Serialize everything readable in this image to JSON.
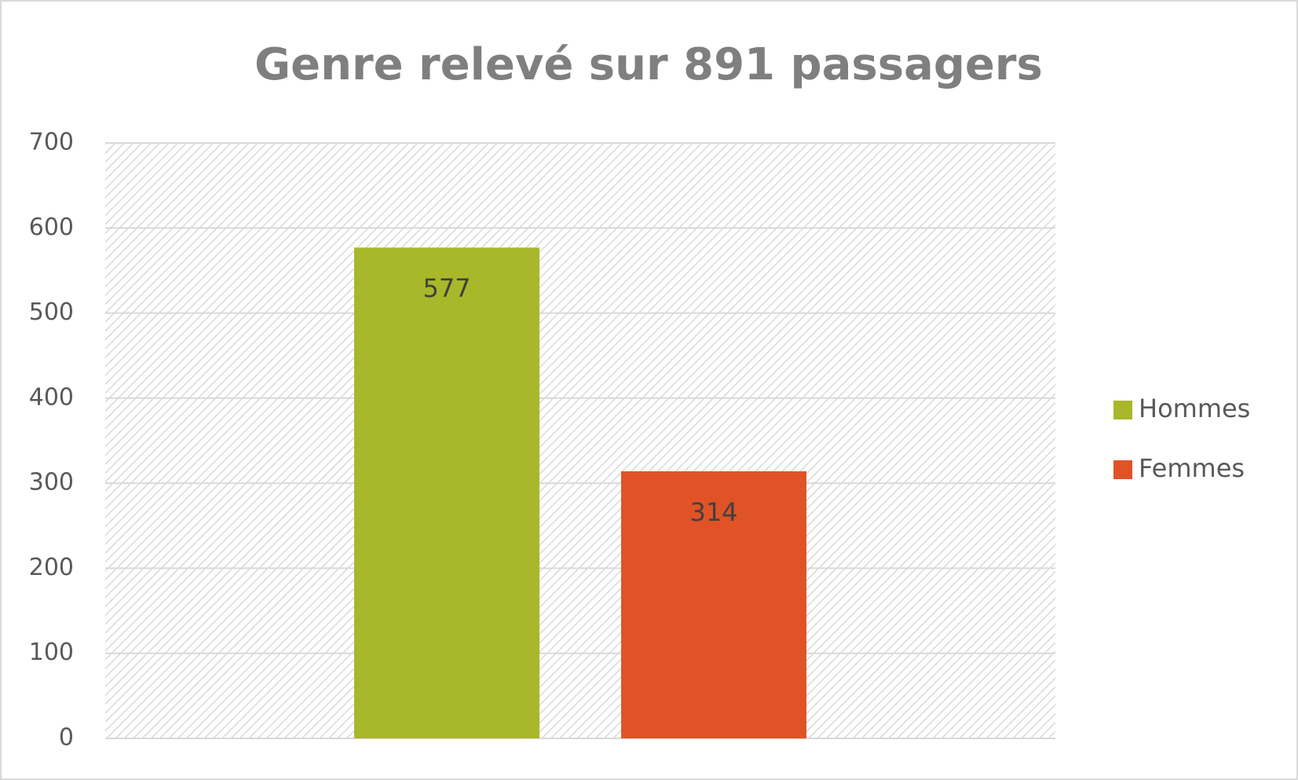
{
  "chart_data": {
    "type": "bar",
    "title": "Genre relevé sur 891 passagers",
    "categories": [
      null
    ],
    "series": [
      {
        "name": "Hommes",
        "color": "#a8b82a",
        "values": [
          577
        ]
      },
      {
        "name": "Femmes",
        "color": "#e05327",
        "values": [
          314
        ]
      }
    ],
    "ylim": [
      0,
      700
    ],
    "yticks": [
      0,
      100,
      200,
      300,
      400,
      500,
      600,
      700
    ],
    "grid": true,
    "legend": "right"
  }
}
